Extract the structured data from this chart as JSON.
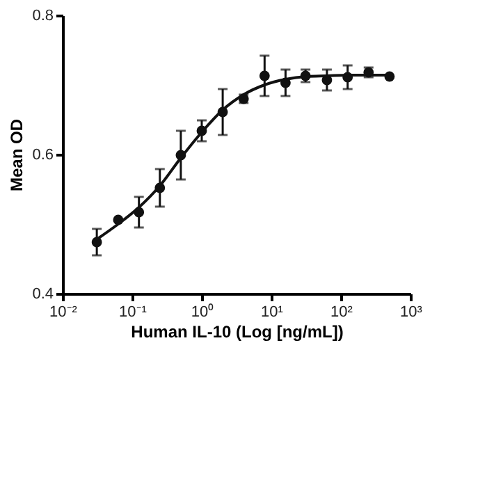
{
  "chart_data": {
    "type": "scatter",
    "xlabel": "Human IL-10 (Log [ng/mL])",
    "ylabel": "Mean OD",
    "log": "x",
    "grid": false,
    "marker": "circle",
    "xlim": [
      0.01,
      1000
    ],
    "ylim": [
      0.4,
      0.8
    ],
    "xticks": [
      {
        "value": 0.01,
        "label": "10⁻²"
      },
      {
        "value": 0.1,
        "label": "10⁻¹"
      },
      {
        "value": 1,
        "label": "10⁰"
      },
      {
        "value": 10,
        "label": "10¹"
      },
      {
        "value": 100,
        "label": "10²"
      },
      {
        "value": 1000,
        "label": "10³"
      }
    ],
    "yticks": [
      0.4,
      0.6,
      0.8
    ],
    "series": [
      {
        "color": "#111111",
        "x": [
          0.031,
          0.063,
          0.125,
          0.25,
          0.5,
          1,
          2,
          4,
          8,
          16,
          31,
          63,
          125,
          250,
          500
        ],
        "values": [
          0.474,
          0.506,
          0.517,
          0.552,
          0.599,
          0.634,
          0.661,
          0.68,
          0.713,
          0.703,
          0.713,
          0.707,
          0.711,
          0.718,
          0.712
        ],
        "errors": [
          0.019,
          null,
          0.022,
          0.027,
          0.035,
          0.015,
          0.033,
          0.006,
          0.029,
          0.019,
          0.009,
          0.015,
          0.017,
          0.007,
          null
        ]
      },
      {
        "type": "line",
        "color": "#111111",
        "line_style": "solid",
        "marker": "none",
        "x": [
          0.031,
          0.063,
          0.125,
          0.25,
          0.5,
          1,
          2,
          4,
          8,
          16,
          32,
          64,
          128,
          512
        ],
        "values": [
          0.478,
          0.5,
          0.524,
          0.555,
          0.595,
          0.632,
          0.664,
          0.686,
          0.7,
          0.708,
          0.712,
          0.713,
          0.714,
          0.714
        ]
      }
    ]
  }
}
